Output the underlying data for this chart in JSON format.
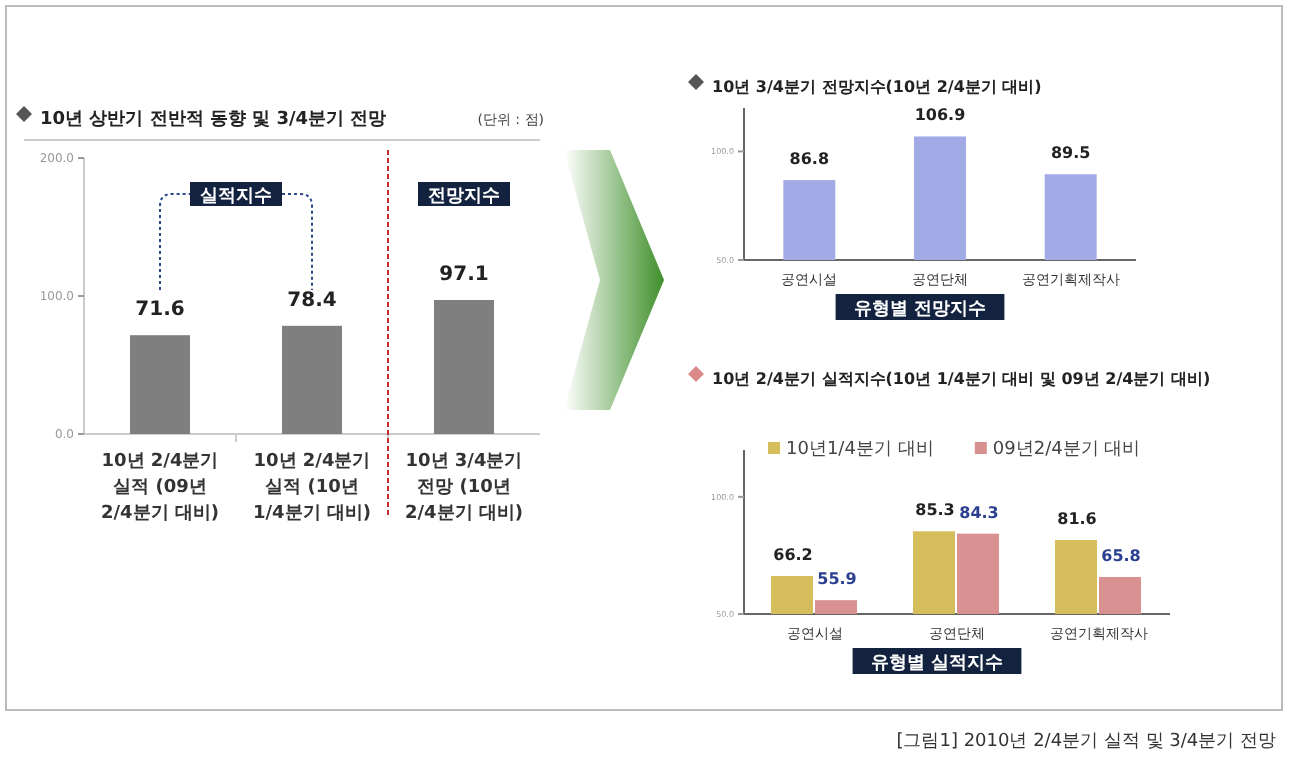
{
  "chart_data": [
    {
      "type": "bar",
      "title": "10년 상반기 전반적 동향 및 3/4분기 전망",
      "categories": [
        "10년 2/4분기 실적 (09년 2/4분기 대비)",
        "10년 2/4분기 실적 (10년 1/4분기 대비)",
        "10년 3/4분기 전망 (10년 2/4분기 대비)"
      ],
      "values": [
        71.6,
        78.4,
        97.1
      ],
      "color": "#7f7f7f",
      "ylim": [
        0,
        200
      ],
      "yticks": [
        {
          "value": 0,
          "label": "0.0"
        },
        {
          "value": 100,
          "label": "100.0"
        },
        {
          "value": 200,
          "label": "200.0"
        }
      ],
      "data_labels": true,
      "annotations": [
        "(단위 : 점)",
        "실적지수",
        "전망지수",
        "[그림1] 2010년 2/4분기 실적 및 3/4분기 전망"
      ]
    },
    {
      "type": "bar",
      "title": "10년 3/4분기 전망지수(10년 2/4분기 대비)",
      "xlabel": "유형별 전망지수",
      "categories": [
        "공연시설",
        "공연단체",
        "공연기획제작사"
      ],
      "values": [
        86.8,
        106.9,
        89.5
      ],
      "color": "#a3abe6",
      "ylim": [
        50,
        120
      ],
      "yticks": [
        {
          "value": 50,
          "label": "50.0"
        },
        {
          "value": 100,
          "label": "100.0"
        }
      ],
      "data_labels": true
    },
    {
      "type": "bar",
      "title": "10년 2/4분기 실적지수(10년 1/4분기 대비 및 09년 2/4분기 대비)",
      "xlabel": "유형별 실적지수",
      "categories": [
        "공연시설",
        "공연단체",
        "공연기획제작사"
      ],
      "legend": "top",
      "ylim": [
        50,
        120
      ],
      "yticks": [
        {
          "value": 50,
          "label": "50.0"
        },
        {
          "value": 100,
          "label": "100.0"
        }
      ],
      "data_labels": true,
      "series": [
        {
          "name": "10년1/4분기 대비",
          "color": "#d6bd5c",
          "values": [
            66.2,
            85.3,
            81.6
          ]
        },
        {
          "name": "09년2/4분기 대비",
          "color": "#d99090",
          "values": [
            55.9,
            84.3,
            65.8
          ]
        }
      ]
    }
  ]
}
